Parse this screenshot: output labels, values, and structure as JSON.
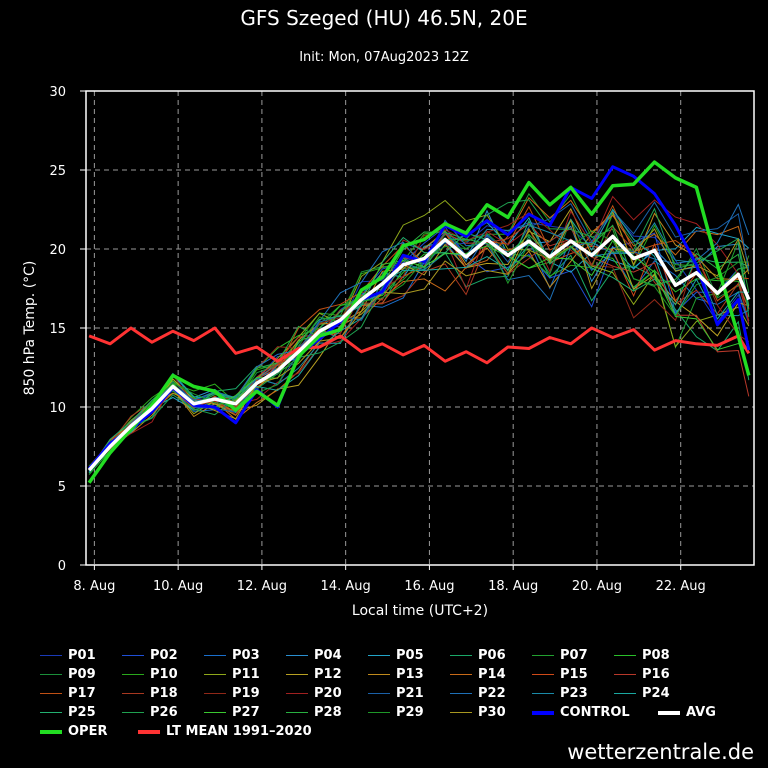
{
  "chart_data": {
    "type": "line",
    "title": "GFS Szeged (HU) 46.5N, 20E",
    "subtitle": "Init: Mon, 07Aug2023 12Z",
    "xlabel": "Local time (UTC+2)",
    "ylabel": "850 hPa Temp. (°C)",
    "ylim": [
      0,
      30
    ],
    "xlim_days": [
      7.8,
      23.75
    ],
    "grid": true,
    "yticks": [
      0,
      5,
      10,
      15,
      20,
      25,
      30
    ],
    "xticks": [
      {
        "day": 8,
        "label": "8. Aug"
      },
      {
        "day": 10,
        "label": "10. Aug"
      },
      {
        "day": 12,
        "label": "12. Aug"
      },
      {
        "day": 14,
        "label": "14. Aug"
      },
      {
        "day": 16,
        "label": "16. Aug"
      },
      {
        "day": 18,
        "label": "18. Aug"
      },
      {
        "day": 20,
        "label": "20. Aug"
      },
      {
        "day": 22,
        "label": "22. Aug"
      }
    ],
    "x": [
      7.875,
      8.375,
      8.875,
      9.375,
      9.875,
      10.375,
      10.875,
      11.375,
      11.875,
      12.375,
      12.875,
      13.375,
      13.875,
      14.375,
      14.875,
      15.375,
      15.875,
      16.375,
      16.875,
      17.375,
      17.875,
      18.375,
      18.875,
      19.375,
      19.875,
      20.375,
      20.875,
      21.375,
      21.875,
      22.375,
      22.875,
      23.375,
      23.625
    ],
    "series": [
      {
        "name": "AVG",
        "role": "avg",
        "color": "#ffffff",
        "values": [
          6.0,
          7.5,
          8.8,
          9.9,
          11.3,
          10.2,
          10.5,
          10.2,
          11.5,
          12.3,
          13.5,
          14.8,
          15.5,
          16.8,
          17.8,
          19.0,
          19.4,
          20.6,
          19.5,
          20.6,
          19.6,
          20.5,
          19.5,
          20.5,
          19.6,
          20.8,
          19.4,
          19.9,
          17.7,
          18.5,
          17.2,
          18.4,
          16.8
        ]
      },
      {
        "name": "OPER",
        "role": "oper",
        "color": "#22dd22",
        "values": [
          5.2,
          7.1,
          8.6,
          10.1,
          12.0,
          11.3,
          11.0,
          9.8,
          11.0,
          10.1,
          13.2,
          14.5,
          14.9,
          17.4,
          18.2,
          20.2,
          20.6,
          21.6,
          21.0,
          22.8,
          22.0,
          24.2,
          22.8,
          23.9,
          22.2,
          24.0,
          24.1,
          25.5,
          24.5,
          23.9,
          19.0,
          14.5,
          12.0
        ]
      },
      {
        "name": "CONTROL",
        "role": "control",
        "color": "#0000ff",
        "values": [
          6.1,
          7.7,
          8.6,
          9.7,
          11.2,
          10.1,
          10.0,
          9.0,
          11.1,
          10.0,
          13.3,
          14.3,
          15.4,
          16.8,
          17.3,
          19.6,
          19.2,
          21.5,
          20.8,
          21.8,
          20.9,
          22.2,
          21.5,
          23.9,
          23.2,
          25.2,
          24.6,
          23.5,
          21.5,
          19.0,
          15.2,
          16.8,
          13.6
        ]
      },
      {
        "name": "LT MEAN 1991-2020",
        "role": "ltmean",
        "color": "#ff3333",
        "values": [
          14.5,
          14.0,
          15.0,
          14.1,
          14.8,
          14.2,
          15.0,
          13.4,
          13.8,
          12.9,
          13.7,
          13.8,
          14.5,
          13.5,
          14.0,
          13.3,
          13.9,
          12.9,
          13.5,
          12.8,
          13.8,
          13.7,
          14.4,
          14.0,
          15.0,
          14.4,
          14.9,
          13.6,
          14.2,
          14.0,
          13.9,
          14.5,
          13.4
        ]
      }
    ]
  },
  "legend": {
    "perturbations": [
      "P01",
      "P02",
      "P03",
      "P04",
      "P05",
      "P06",
      "P07",
      "P08",
      "P09",
      "P10",
      "P11",
      "P12",
      "P13",
      "P14",
      "P15",
      "P16",
      "P17",
      "P18",
      "P19",
      "P20",
      "P21",
      "P22",
      "P23",
      "P24",
      "P25",
      "P26",
      "P27",
      "P28",
      "P29",
      "P30"
    ],
    "perturbation_colors": [
      "#1a3ab8",
      "#1f4fd6",
      "#1a6fcc",
      "#2a8fd0",
      "#22a5c8",
      "#1aa868",
      "#22a030",
      "#2abf2a",
      "#1b8f3a",
      "#2aa81c",
      "#8fa81a",
      "#b8a022",
      "#c08a1c",
      "#c86a18",
      "#d04a18",
      "#b8382a",
      "#c05014",
      "#a83820",
      "#902818",
      "#a02020",
      "#1a60a8",
      "#1e70b8",
      "#1a8aa8",
      "#1aa8a0",
      "#22b070",
      "#1fa050",
      "#3ac830",
      "#28b040",
      "#1e9828",
      "#a89820"
    ],
    "control": "CONTROL",
    "avg": "AVG",
    "oper": "OPER",
    "ltmean": "LT MEAN 1991–2020"
  },
  "credit": "wetterzentrale.de"
}
